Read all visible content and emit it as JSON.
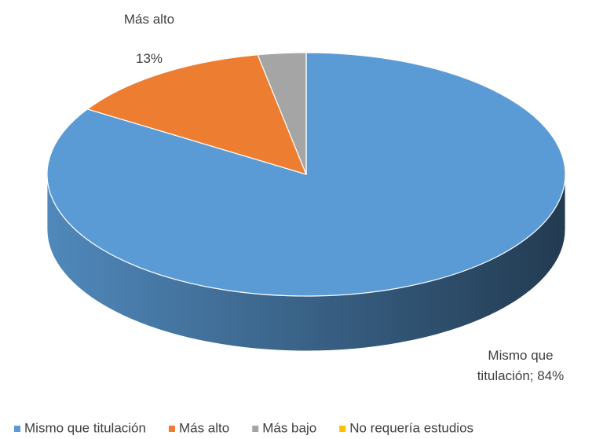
{
  "chart_data": {
    "type": "pie3d",
    "categories": [
      "Mismo que titulación",
      "Más alto",
      "Más bajo",
      "No requería estudios"
    ],
    "values": [
      84,
      13,
      3,
      0
    ],
    "value_labels": [
      "Mismo que titulación; 84%",
      "13%",
      null,
      null
    ],
    "colors": [
      "#5b9bd5",
      "#ed7d31",
      "#a5a5a5",
      "#ffc000"
    ],
    "legend": "bottom"
  }
}
